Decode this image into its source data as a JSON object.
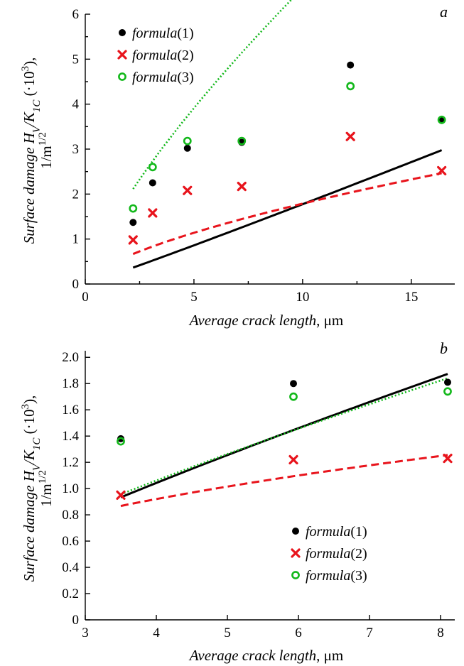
{
  "colors": {
    "formula1": "#000000",
    "formula2": "#e8141c",
    "formula3": "#12b81a"
  },
  "chart_data": [
    {
      "panel": "a",
      "type": "scatter",
      "xlabel": {
        "italic": "Average crack length",
        "rest": ", μm"
      },
      "ylabel": {
        "line1": {
          "italic": "Surface damage H",
          "sub1": "V",
          "mid": "/K",
          "sub2": "1C",
          "tail": " (·10",
          "sup": "3",
          "end": "),"
        },
        "line2": {
          "base": "1/m",
          "sup": "1/2"
        }
      },
      "xlim": [
        0,
        17
      ],
      "ylim": [
        0,
        6
      ],
      "xticks": [
        0,
        5,
        10,
        15
      ],
      "yticks": [
        0,
        1,
        2,
        3,
        4,
        5,
        6
      ],
      "legend_position": "top-left",
      "series": [
        {
          "name": "formula",
          "num": "(1)",
          "key": "formula1",
          "marker": "dot",
          "line": "solid",
          "points": [
            [
              2.2,
              1.37
            ],
            [
              3.1,
              2.25
            ],
            [
              4.7,
              3.02
            ],
            [
              7.2,
              3.15
            ],
            [
              12.2,
              4.87
            ],
            [
              16.4,
              3.65
            ]
          ],
          "fit": {
            "a": 0.16,
            "b": 1.045
          }
        },
        {
          "name": "formula",
          "num": "(2)",
          "key": "formula2",
          "marker": "cross",
          "line": "dashed",
          "points": [
            [
              2.2,
              0.98
            ],
            [
              3.1,
              1.58
            ],
            [
              4.7,
              2.08
            ],
            [
              7.2,
              2.17
            ],
            [
              12.2,
              3.28
            ],
            [
              16.4,
              2.52
            ]
          ],
          "fit": {
            "a": 0.4,
            "b": 0.65
          }
        },
        {
          "name": "formula",
          "num": "(3)",
          "key": "formula3",
          "marker": "ring",
          "line": "dotted",
          "points": [
            [
              2.2,
              1.68
            ],
            [
              3.1,
              2.6
            ],
            [
              4.7,
              3.18
            ],
            [
              7.2,
              3.18
            ],
            [
              12.2,
              4.4
            ],
            [
              16.4,
              3.65
            ]
          ],
          "fit": {
            "a": 1.17,
            "b": 0.75
          }
        }
      ],
      "fit_x_range": [
        2.2,
        16.4
      ]
    },
    {
      "panel": "b",
      "type": "scatter",
      "xlabel": {
        "italic": "Average crack length",
        "rest": ", μm"
      },
      "ylabel": {
        "line1": {
          "italic": "Surface damage H",
          "sub1": "V",
          "mid": "/K",
          "sub2": "1C",
          "tail": " (·10",
          "sup": "3",
          "end": "),"
        },
        "line2": {
          "base": "1/m",
          "sup": "1/2"
        }
      },
      "xlim": [
        3,
        8.2
      ],
      "ylim": [
        0,
        2.05
      ],
      "xticks": [
        3,
        4,
        5,
        6,
        7,
        8
      ],
      "yticks": [
        "0",
        "0.2",
        "0.4",
        "0.6",
        "0.8",
        "1.0",
        "1.2",
        "1.4",
        "1.6",
        "1.8",
        "2.0"
      ],
      "legend_position": "bottom-right",
      "series": [
        {
          "name": "formula",
          "num": "(1)",
          "key": "formula1",
          "marker": "dot",
          "line": "solid",
          "points": [
            [
              3.5,
              1.38
            ],
            [
              5.93,
              1.8
            ],
            [
              8.1,
              1.81
            ]
          ],
          "fit": {
            "a": 0.33,
            "b": 0.83
          }
        },
        {
          "name": "formula",
          "num": "(2)",
          "key": "formula2",
          "marker": "cross",
          "line": "dashed",
          "points": [
            [
              3.5,
              0.95
            ],
            [
              5.93,
              1.22
            ],
            [
              8.1,
              1.23
            ]
          ],
          "fit": {
            "a": 0.5,
            "b": 0.44
          }
        },
        {
          "name": "formula",
          "num": "(3)",
          "key": "formula3",
          "marker": "ring",
          "line": "dotted",
          "points": [
            [
              3.5,
              1.36
            ],
            [
              5.93,
              1.7
            ],
            [
              8.1,
              1.74
            ]
          ],
          "fit": {
            "a": 0.36,
            "b": 0.78
          }
        }
      ],
      "fit_x_range": [
        3.5,
        8.1
      ]
    }
  ]
}
